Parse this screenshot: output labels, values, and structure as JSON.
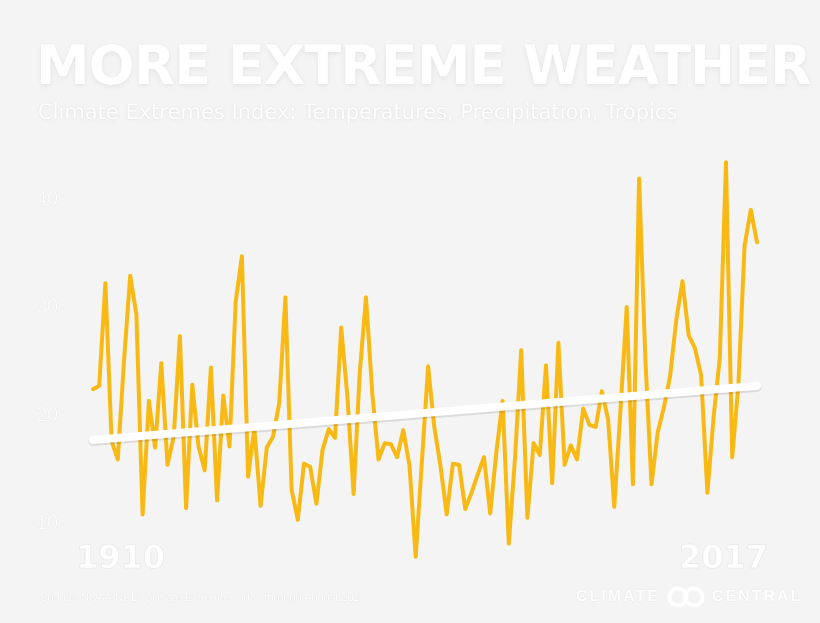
{
  "header": {
    "title": "MORE EXTREME WEATHER",
    "subtitle": "Climate Extremes Index: Temperatures, Precipitation, Tropics"
  },
  "footer": {
    "source": "Source: NOAA/NCEI Climate Extremes Index through August 2017",
    "brand_left": "CLIMATE",
    "brand_right": "CENTRAL",
    "logo_icon": "climate-central-logo-icon"
  },
  "colors": {
    "series": "#f9b915",
    "trend": "#ffffff",
    "background": "#f4f4f4"
  },
  "chart_data": {
    "type": "line",
    "title": "MORE EXTREME WEATHER",
    "subtitle": "Climate Extremes Index: Temperatures, Precipitation, Tropics",
    "xlabel": "",
    "ylabel": "",
    "x_tick_labels": [
      "1910",
      "2017"
    ],
    "y_ticks": [
      10,
      20,
      30,
      40
    ],
    "xlim": [
      1910,
      2017
    ],
    "ylim": [
      7,
      45
    ],
    "grid": false,
    "legend": "none",
    "series": [
      {
        "values": [
          22.3,
          22.6,
          32.1,
          17.5,
          15.8,
          24.9,
          32.8,
          29.2,
          10.7,
          21.2,
          16.9,
          24.7,
          15.3,
          17.9,
          27.2,
          11.3,
          22.7,
          17.0,
          14.8,
          24.3,
          12.0,
          21.7,
          17.0,
          30.4,
          34.6,
          14.2,
          18.7,
          11.5,
          16.9,
          17.9,
          21.0,
          30.8,
          13.0,
          10.2,
          15.4,
          15.1,
          11.7,
          16.7,
          18.6,
          17.8,
          28.0,
          21.6,
          12.6,
          23.9,
          30.8,
          21.9,
          15.8,
          17.3,
          17.2,
          16.0,
          18.5,
          15.2,
          6.8,
          15.6,
          24.4,
          18.8,
          15.2,
          10.7,
          15.4,
          15.3,
          11.2,
          12.7,
          14.4,
          16.0,
          10.8,
          16.5,
          21.2,
          8.0,
          15.9,
          25.9,
          10.4,
          17.3,
          16.2,
          24.5,
          13.6,
          26.6,
          15.3,
          17.1,
          15.8,
          20.5,
          19.0,
          18.8,
          22.1,
          19.5,
          11.4,
          20.4,
          29.9,
          13.5,
          41.8,
          25.2,
          13.5,
          18.3,
          20.6,
          23.5,
          28.7,
          32.3,
          27.3,
          26.1,
          23.6,
          12.7,
          19.7,
          25.2,
          43.3,
          16.0,
          22.7,
          35.6,
          38.9,
          35.9
        ]
      }
    ],
    "trend": {
      "start": 17.6,
      "end": 22.6
    }
  }
}
